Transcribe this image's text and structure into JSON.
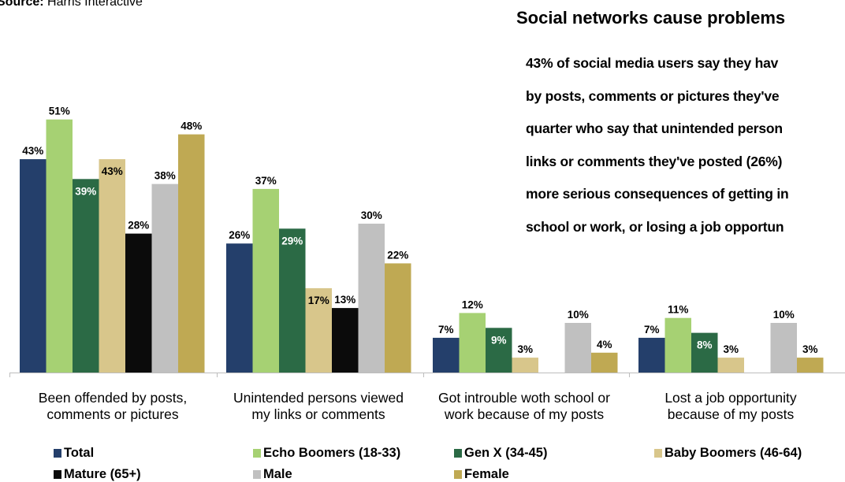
{
  "source": {
    "label": "Source:",
    "text": "Harris Interactive"
  },
  "headline": "Social networks cause problems",
  "bullets": [
    "43% of social media users say they hav",
    "by posts, comments or pictures they've",
    "quarter who say that unintended person",
    "links or comments they've posted (26%)",
    "more serious consequences of getting in",
    "school or work, or losing a job opportun"
  ],
  "colors": {
    "Total": "#243f6b",
    "Echo Boomers (18-33)": "#a6d173",
    "Gen X (34-45)": "#2b6a45",
    "Baby Boomers (46-64)": "#d8c68b",
    "Mature (65+)": "#0b0b0b",
    "Male": "#c0c0c0",
    "Female": "#bfa953"
  },
  "legend": [
    {
      "name": "Total",
      "color": "#243f6b"
    },
    {
      "name": "Echo Boomers (18-33)",
      "color": "#a6d173"
    },
    {
      "name": "Gen X (34-45)",
      "color": "#2b6a45"
    },
    {
      "name": "Baby Boomers (46-64)",
      "color": "#d8c68b"
    },
    {
      "name": "Mature (65+)",
      "color": "#0b0b0b"
    },
    {
      "name": "Male",
      "color": "#c0c0c0"
    },
    {
      "name": "Female",
      "color": "#bfa953"
    }
  ],
  "chart_data": {
    "type": "bar",
    "categories": [
      [
        "Been offended by posts,",
        "comments or pictures"
      ],
      [
        "Unintended persons viewed",
        "my links or comments"
      ],
      [
        "Got introuble woth school or",
        "work because of my posts"
      ],
      [
        "Lost a job opportunity",
        "because of my posts"
      ]
    ],
    "series": [
      {
        "name": "Total",
        "values": [
          43,
          26,
          7,
          7
        ],
        "labels": [
          "43%",
          "26%",
          "7%",
          "7%"
        ]
      },
      {
        "name": "Echo Boomers (18-33)",
        "values": [
          51,
          37,
          12,
          11
        ],
        "labels": [
          "51%",
          "37%",
          "12%",
          "11%"
        ]
      },
      {
        "name": "Gen X (34-45)",
        "values": [
          39,
          29,
          9,
          8
        ],
        "labels": [
          "39%",
          "29%",
          "9%",
          "8%"
        ]
      },
      {
        "name": "Baby Boomers (46-64)",
        "values": [
          43,
          17,
          3,
          3
        ],
        "labels": [
          "43%",
          "17%",
          "3%",
          "3%"
        ]
      },
      {
        "name": "Mature (65+)",
        "values": [
          28,
          13,
          null,
          null
        ],
        "labels": [
          "28%",
          "13%",
          null,
          null
        ]
      },
      {
        "name": "Male",
        "values": [
          38,
          30,
          10,
          10
        ],
        "labels": [
          "38%",
          "30%",
          "10%",
          "10%"
        ]
      },
      {
        "name": "Female",
        "values": [
          48,
          22,
          4,
          3
        ],
        "labels": [
          "48%",
          "22%",
          "4%",
          "3%"
        ]
      }
    ],
    "ylim": [
      0,
      55
    ],
    "grid": false,
    "legend_position": "bottom"
  }
}
